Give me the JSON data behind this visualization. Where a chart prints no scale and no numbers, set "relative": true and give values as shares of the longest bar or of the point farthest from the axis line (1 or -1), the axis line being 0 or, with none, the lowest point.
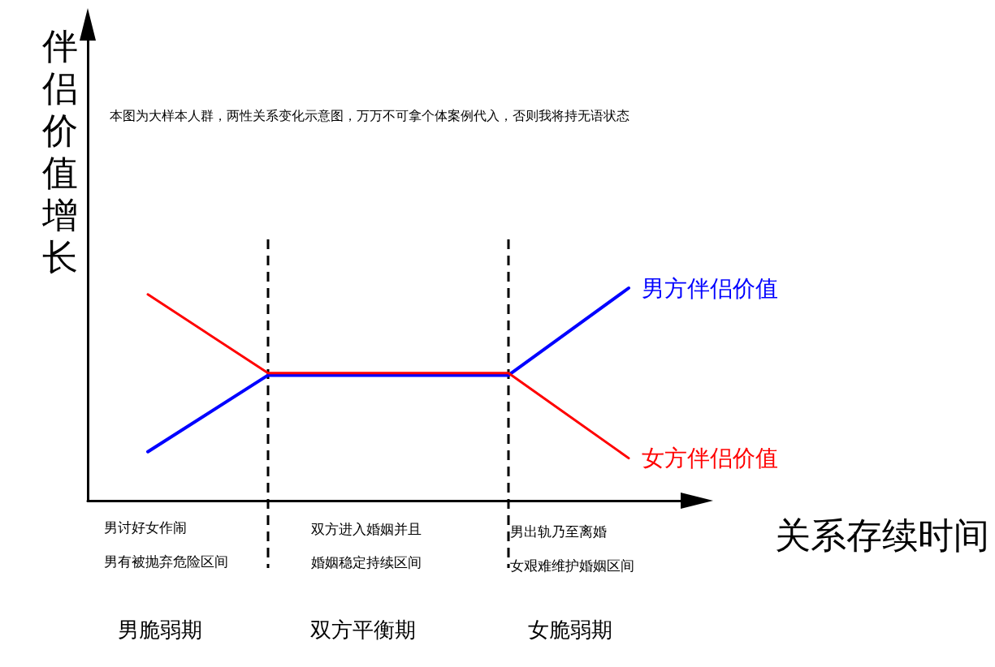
{
  "chart_data": {
    "type": "line",
    "relative": true,
    "ylabel": "伴侣价值增长",
    "xlabel": "关系存续时间",
    "categories": [
      null,
      null,
      null,
      null,
      null
    ],
    "series": [
      {
        "name": "女方伴侣价值",
        "color": "#ff0000",
        "values": [
          0.97,
          0.6,
          0.6,
          0.6,
          0.2
        ]
      },
      {
        "name": "男方伴侣价值",
        "color": "#0000ff",
        "values": [
          0.23,
          0.59,
          0.59,
          0.59,
          1
        ]
      }
    ],
    "annotations": [
      "本图为大样本人群，两性关系变化示意图，万万不可拿个体案例代入，否则我将持无语状态",
      "男讨好女作闹",
      "男有被抛弃危险区间",
      "双方进入婚姻并且",
      "婚姻稳定持续区间",
      "男出轨乃至离婚",
      "女艰难维护婚姻区间",
      "男脆弱期",
      "双方平衡期",
      "女脆弱期"
    ],
    "legend": false,
    "grid": false,
    "marker": "none",
    "line_style": "solid"
  }
}
